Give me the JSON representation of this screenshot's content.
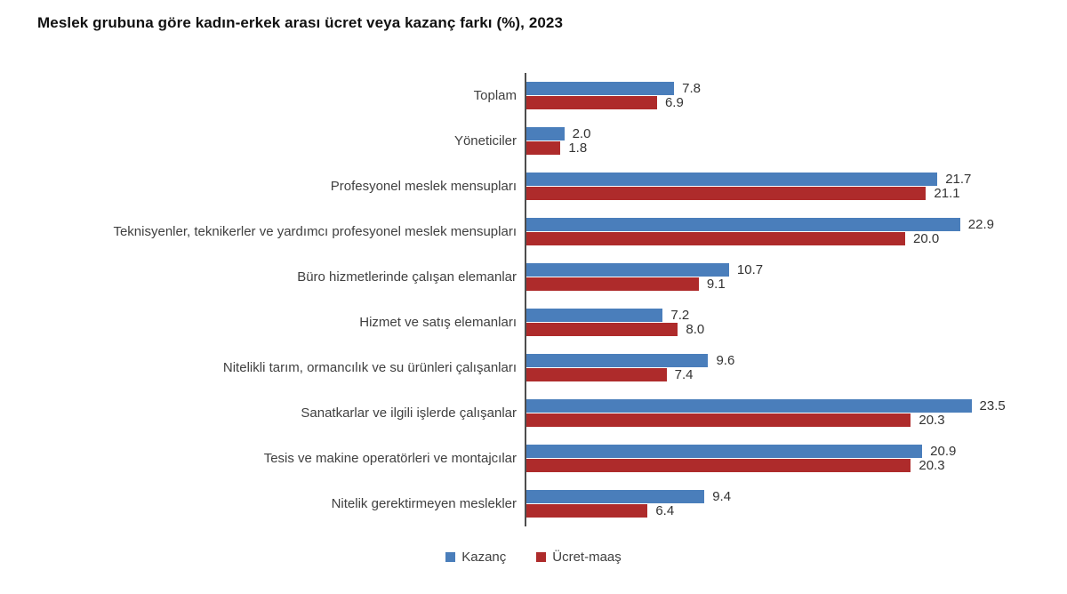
{
  "title": "Meslek grubuna göre kadın-erkek arası ücret veya kazanç farkı (%), 2023",
  "legend": [
    {
      "label": "Kazanç",
      "color": "#4A7EBB"
    },
    {
      "label": "Ücret-maaş",
      "color": "#AE2B2B"
    }
  ],
  "chart_data": {
    "type": "bar",
    "orientation": "horizontal",
    "title": "Meslek grubuna göre kadın-erkek arası ücret veya kazanç farkı (%), 2023",
    "categories": [
      "Toplam",
      "Yöneticiler",
      "Profesyonel meslek mensupları",
      "Teknisyenler, teknikerler ve yardımcı profesyonel meslek mensupları",
      "Büro hizmetlerinde çalışan elemanlar",
      "Hizmet ve satış elemanları",
      "Nitelikli tarım, ormancılık ve su ürünleri çalışanları",
      "Sanatkarlar ve ilgili işlerde çalışanlar",
      "Tesis ve makine operatörleri ve montajcılar",
      "Nitelik gerektirmeyen meslekler"
    ],
    "series": [
      {
        "name": "Kazanç",
        "color": "#4A7EBB",
        "values": [
          7.8,
          2.0,
          21.7,
          22.9,
          10.7,
          7.2,
          9.6,
          23.5,
          20.9,
          9.4
        ]
      },
      {
        "name": "Ücret-maaş",
        "color": "#AE2B2B",
        "values": [
          6.9,
          1.8,
          21.1,
          20.0,
          9.1,
          8.0,
          7.4,
          20.3,
          20.3,
          6.4
        ]
      }
    ],
    "xlim": [
      0,
      25
    ],
    "value_labels": true,
    "value_label_decimals": 1,
    "grid": false,
    "legend_position": "bottom"
  }
}
